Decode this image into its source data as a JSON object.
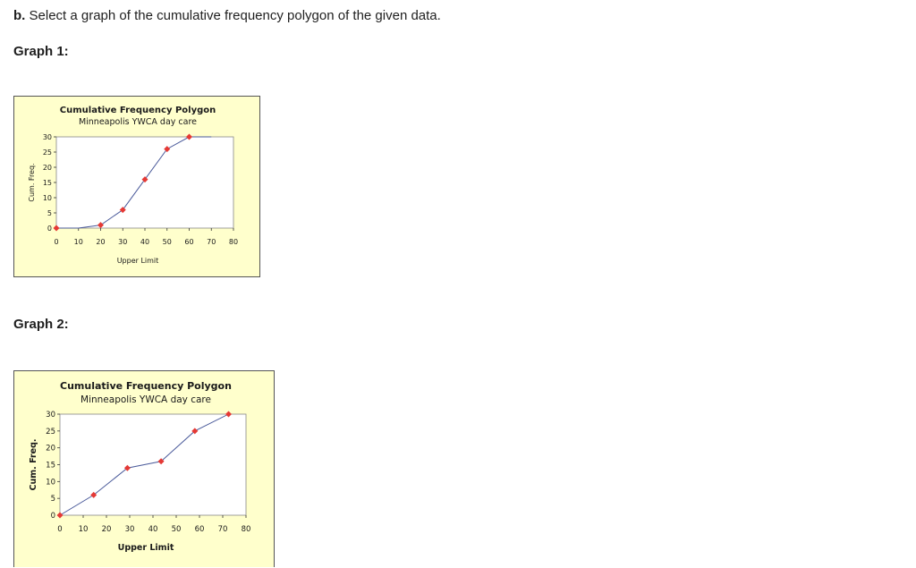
{
  "question": {
    "prefix": "b.",
    "text": "Select a graph of the cumulative frequency polygon of the given data."
  },
  "graph1_label": "Graph 1:",
  "graph2_label": "Graph 2:",
  "colors": {
    "plot_bg": "#ffffff",
    "panel_bg": "#ffffcc",
    "line": "#4a5a9a",
    "marker": "#e53935"
  },
  "chart_data": [
    {
      "type": "line",
      "title": "Cumulative Frequency Polygon",
      "subtitle": "Minneapolis YWCA day care",
      "xlabel": "Upper Limit",
      "ylabel": "Cum. Freq.",
      "xlim": [
        0,
        80
      ],
      "ylim": [
        0,
        30
      ],
      "xticks": [
        "0",
        "10",
        "20",
        "30",
        "40",
        "50",
        "60",
        "70",
        "80"
      ],
      "yticks": [
        "0",
        "5",
        "10",
        "15",
        "20",
        "25",
        "30"
      ],
      "series": [
        {
          "x": [
            0,
            10,
            20,
            30,
            40,
            50,
            60,
            70
          ],
          "y": [
            0,
            0,
            1,
            6,
            16,
            26,
            30,
            30
          ],
          "markers": [
            true,
            false,
            true,
            true,
            true,
            true,
            true,
            false
          ]
        }
      ],
      "grid": false
    },
    {
      "type": "line",
      "title": "Cumulative Frequency Polygon",
      "subtitle": "Minneapolis YWCA day care",
      "xlabel": "Upper Limit",
      "ylabel": "Cum. Freq.",
      "xlim": [
        0,
        80
      ],
      "ylim": [
        0,
        30
      ],
      "xticks": [
        "0",
        "10",
        "20",
        "30",
        "40",
        "50",
        "60",
        "70",
        "80"
      ],
      "yticks": [
        "0",
        "5",
        "10",
        "15",
        "20",
        "25",
        "30"
      ],
      "series": [
        {
          "x": [
            0,
            14.5,
            29,
            43.5,
            58,
            72.5
          ],
          "y": [
            0,
            6,
            14,
            16,
            25,
            30
          ],
          "markers": [
            true,
            true,
            true,
            true,
            true,
            true
          ]
        }
      ],
      "grid": false
    }
  ]
}
